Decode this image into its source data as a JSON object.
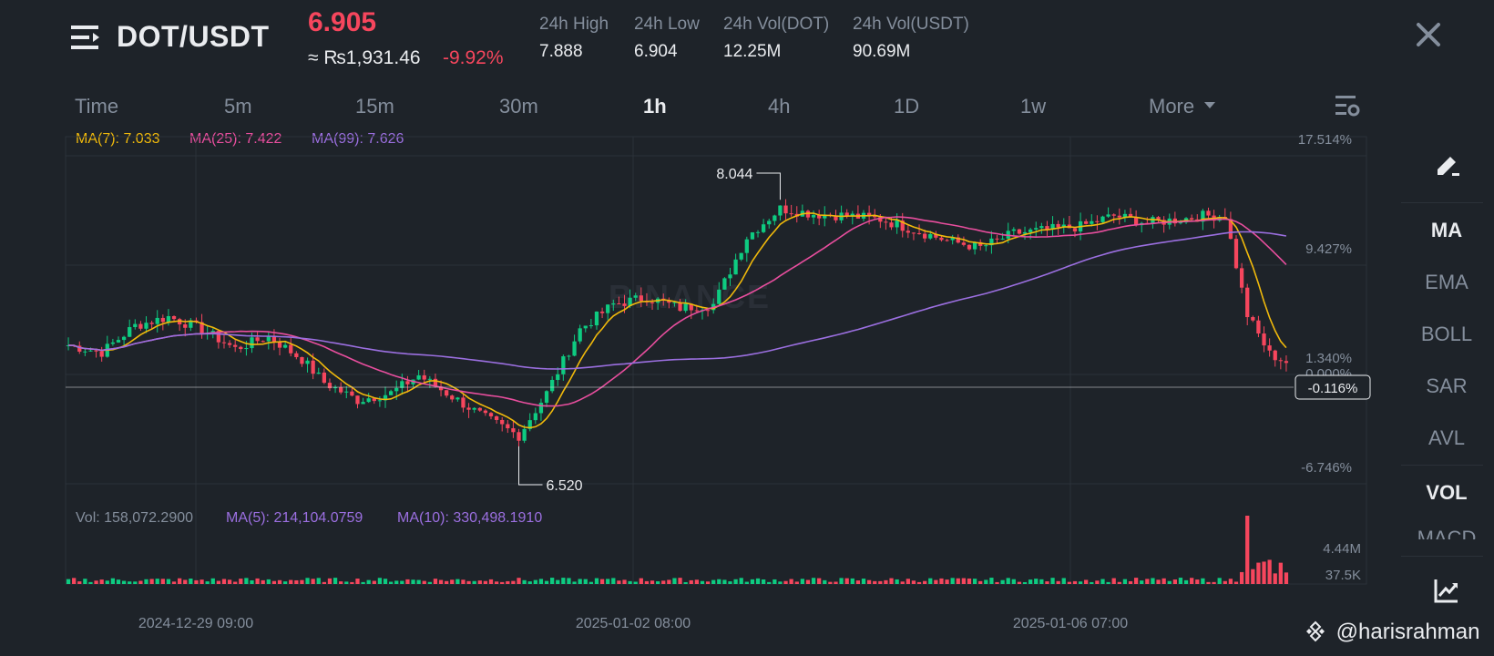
{
  "header": {
    "pair": "DOT/USDT",
    "price": "6.905",
    "price_inr": "≈ ₨1,931.46",
    "change": "-9.92%",
    "stats": [
      {
        "label": "24h High",
        "value": "7.888"
      },
      {
        "label": "24h Low",
        "value": "6.904"
      },
      {
        "label": "24h Vol(DOT)",
        "value": "12.25M"
      },
      {
        "label": "24h Vol(USDT)",
        "value": "90.69M"
      }
    ]
  },
  "tabs": [
    {
      "label": "Time",
      "active": false
    },
    {
      "label": "5m",
      "active": false
    },
    {
      "label": "15m",
      "active": false
    },
    {
      "label": "30m",
      "active": false
    },
    {
      "label": "1h",
      "active": true
    },
    {
      "label": "4h",
      "active": false
    },
    {
      "label": "1D",
      "active": false
    },
    {
      "label": "1w",
      "active": false
    },
    {
      "label": "More",
      "active": false
    }
  ],
  "legend": {
    "ma7": "MA(7): 7.033",
    "ma25": "MA(25): 7.422",
    "ma99": "MA(99): 7.626"
  },
  "vol_legend": {
    "vol": "Vol: 158,072.2900",
    "ma5": "MA(5): 214,104.0759",
    "ma10": "MA(10): 330,498.1910"
  },
  "sidebar": {
    "items": [
      {
        "label": "MA",
        "active": true
      },
      {
        "label": "EMA",
        "active": false
      },
      {
        "label": "BOLL",
        "active": false
      },
      {
        "label": "SAR",
        "active": false
      },
      {
        "label": "AVL",
        "active": false
      },
      {
        "label": "VOL",
        "active": true
      },
      {
        "label": "MACD",
        "active": false
      }
    ]
  },
  "watermark": {
    "brand": "BINANCE",
    "handle": "@harisrahman"
  },
  "colors": {
    "up": "#0ecb81",
    "down": "#f6465d",
    "ma7": "#f0b90b",
    "ma25": "#e84e9e",
    "ma99": "#9b6fe0",
    "bg": "#1e2329",
    "grid": "#2b3139",
    "text_muted": "#848e9c"
  },
  "chart_data": {
    "type": "candlestick",
    "y_axis_labels": [
      "17.514%",
      "9.427%",
      "1.340%",
      "0.000%",
      "-6.746%"
    ],
    "current_change_label": "-0.116%",
    "volume_axis_labels": [
      "4.44M",
      "37.5K"
    ],
    "x_axis_labels": [
      "2024-12-29 09:00",
      "2025-01-02 08:00",
      "2025-01-06 07:00"
    ],
    "annotations": {
      "high": "8.044",
      "low": "6.520"
    },
    "price_range": [
      6.4,
      8.1
    ],
    "price_path_anchors": [
      [
        0,
        7.13
      ],
      [
        6,
        7.09
      ],
      [
        12,
        7.24
      ],
      [
        18,
        7.29
      ],
      [
        24,
        7.22
      ],
      [
        30,
        7.11
      ],
      [
        36,
        7.18
      ],
      [
        42,
        7.05
      ],
      [
        46,
        6.92
      ],
      [
        52,
        6.82
      ],
      [
        58,
        6.86
      ],
      [
        63,
        6.96
      ],
      [
        69,
        6.84
      ],
      [
        75,
        6.72
      ],
      [
        81,
        6.62
      ],
      [
        86,
        6.86
      ],
      [
        92,
        7.22
      ],
      [
        98,
        7.36
      ],
      [
        104,
        7.4
      ],
      [
        110,
        7.34
      ],
      [
        116,
        7.36
      ],
      [
        122,
        7.74
      ],
      [
        128,
        7.9
      ],
      [
        134,
        7.87
      ],
      [
        140,
        7.86
      ],
      [
        146,
        7.84
      ],
      [
        152,
        7.78
      ],
      [
        158,
        7.72
      ],
      [
        164,
        7.68
      ],
      [
        170,
        7.76
      ],
      [
        176,
        7.78
      ],
      [
        182,
        7.8
      ],
      [
        188,
        7.86
      ],
      [
        194,
        7.82
      ],
      [
        200,
        7.84
      ],
      [
        204,
        7.86
      ],
      [
        208,
        7.86
      ],
      [
        212,
        7.3
      ],
      [
        216,
        7.08
      ],
      [
        220,
        7.02
      ]
    ]
  }
}
